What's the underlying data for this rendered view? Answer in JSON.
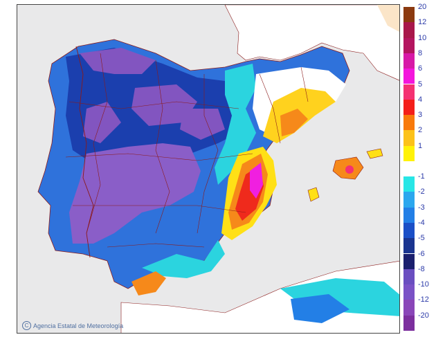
{
  "map": {
    "credit_text": "Agencia Estatal de Meteorología",
    "credit_icon": "copyright-circle-icon"
  },
  "legend": {
    "upper_labels": [
      "20",
      "12",
      "10",
      "8",
      "6",
      "5",
      "4",
      "3",
      "2",
      "1"
    ],
    "upper_colors": [
      "#8b3a10",
      "#a8174a",
      "#b4155f",
      "#d719a7",
      "#f416dc",
      "#f43172",
      "#f41f1a",
      "#f87a0c",
      "#fcc21a",
      "#fff208"
    ],
    "lower_labels": [
      "-1",
      "-2",
      "-3",
      "-4",
      "-5",
      "-6",
      "-8",
      "-10",
      "-12",
      "-20"
    ],
    "lower_colors": [
      "#28e6e6",
      "#2ca7ee",
      "#237fe6",
      "#1b4fc7",
      "#1a3490",
      "#1a1f6e",
      "#6a4ec0",
      "#7a52c6",
      "#8a46b8",
      "#7c2f9e"
    ]
  },
  "colors": {
    "sea": "#e9e9ea",
    "land_neutral": "#ffffff",
    "border_lines": "#8b1a1a",
    "frame": "#444444"
  }
}
